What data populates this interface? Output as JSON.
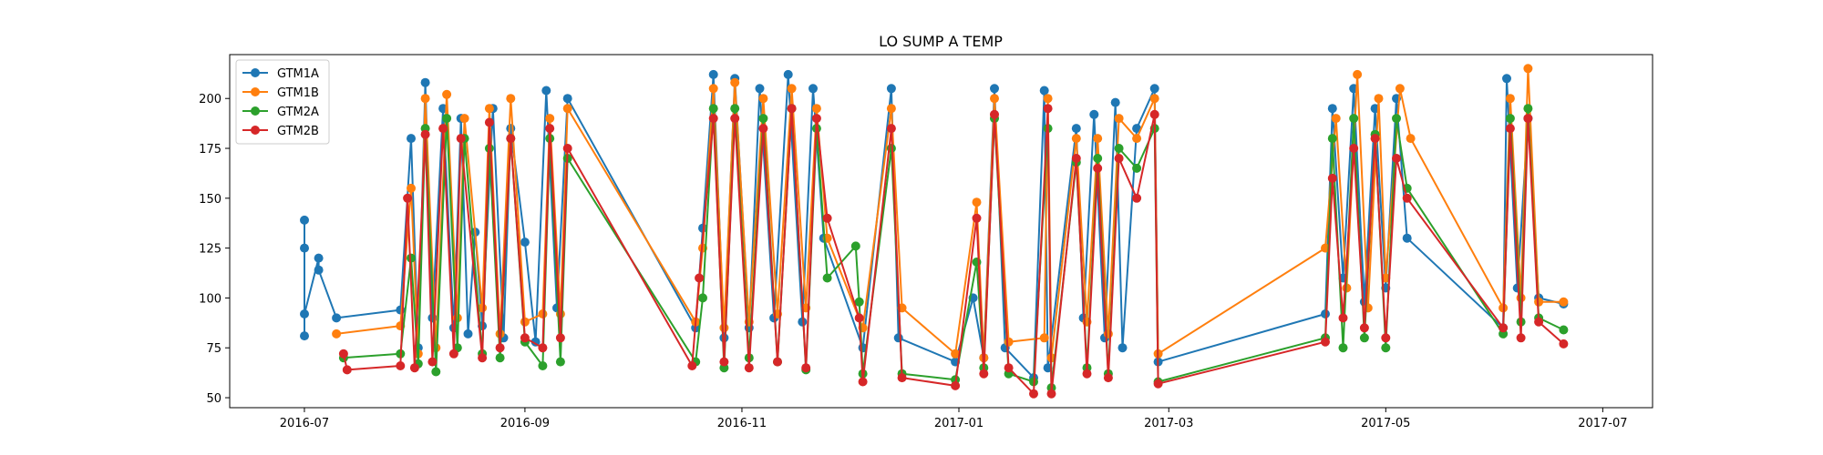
{
  "chart_data": {
    "type": "line",
    "title": "LO SUMP A TEMP",
    "xlabel": "",
    "ylabel": "",
    "x_axis": "date",
    "xlim": [
      "2016-06-10",
      "2017-07-15"
    ],
    "ylim": [
      45,
      222
    ],
    "x_ticks": [
      "2016-07-01",
      "2016-09-01",
      "2016-11-01",
      "2017-01-01",
      "2017-03-01",
      "2017-05-01",
      "2017-07-01"
    ],
    "x_tick_labels": [
      "2016-07",
      "2016-09",
      "2016-11",
      "2017-01",
      "2017-03",
      "2017-05",
      "2017-07"
    ],
    "y_ticks": [
      50,
      75,
      100,
      125,
      150,
      175,
      200
    ],
    "y_tick_labels": [
      "50",
      "75",
      "100",
      "125",
      "150",
      "175",
      "200"
    ],
    "grid": false,
    "legend_position": "top-left",
    "markers": true,
    "series": [
      {
        "name": "GTM1A",
        "color": "#1f77b4",
        "points": [
          [
            "2016-07-01",
            81
          ],
          [
            "2016-07-01",
            139
          ],
          [
            "2016-07-01",
            125
          ],
          [
            "2016-07-01",
            92
          ],
          [
            "2016-07-05",
            120
          ],
          [
            "2016-07-05",
            114
          ],
          [
            "2016-07-10",
            90
          ],
          [
            "2016-07-28",
            94
          ],
          [
            "2016-07-31",
            180
          ],
          [
            "2016-08-02",
            75
          ],
          [
            "2016-08-04",
            208
          ],
          [
            "2016-08-06",
            90
          ],
          [
            "2016-08-09",
            195
          ],
          [
            "2016-08-12",
            85
          ],
          [
            "2016-08-14",
            190
          ],
          [
            "2016-08-16",
            82
          ],
          [
            "2016-08-18",
            133
          ],
          [
            "2016-08-20",
            86
          ],
          [
            "2016-08-23",
            195
          ],
          [
            "2016-08-26",
            80
          ],
          [
            "2016-08-28",
            185
          ],
          [
            "2016-09-01",
            128
          ],
          [
            "2016-09-04",
            78
          ],
          [
            "2016-09-07",
            204
          ],
          [
            "2016-09-10",
            95
          ],
          [
            "2016-09-13",
            200
          ],
          [
            "2016-10-19",
            85
          ],
          [
            "2016-10-21",
            135
          ],
          [
            "2016-10-24",
            212
          ],
          [
            "2016-10-27",
            80
          ],
          [
            "2016-10-30",
            210
          ],
          [
            "2016-11-03",
            85
          ],
          [
            "2016-11-06",
            205
          ],
          [
            "2016-11-10",
            90
          ],
          [
            "2016-11-14",
            212
          ],
          [
            "2016-11-18",
            88
          ],
          [
            "2016-11-21",
            205
          ],
          [
            "2016-11-24",
            130
          ],
          [
            "2016-12-05",
            75
          ],
          [
            "2016-12-13",
            205
          ],
          [
            "2016-12-15",
            80
          ],
          [
            "2016-12-31",
            68
          ],
          [
            "2017-01-05",
            100
          ],
          [
            "2017-01-08",
            70
          ],
          [
            "2017-01-11",
            205
          ],
          [
            "2017-01-14",
            75
          ],
          [
            "2017-01-22",
            60
          ],
          [
            "2017-01-25",
            204
          ],
          [
            "2017-01-26",
            65
          ],
          [
            "2017-02-03",
            185
          ],
          [
            "2017-02-05",
            90
          ],
          [
            "2017-02-08",
            192
          ],
          [
            "2017-02-11",
            80
          ],
          [
            "2017-02-14",
            198
          ],
          [
            "2017-02-16",
            75
          ],
          [
            "2017-02-20",
            185
          ],
          [
            "2017-02-25",
            205
          ],
          [
            "2017-02-26",
            68
          ],
          [
            "2017-04-14",
            92
          ],
          [
            "2017-04-16",
            195
          ],
          [
            "2017-04-19",
            110
          ],
          [
            "2017-04-22",
            205
          ],
          [
            "2017-04-25",
            98
          ],
          [
            "2017-04-28",
            195
          ],
          [
            "2017-05-01",
            105
          ],
          [
            "2017-05-04",
            200
          ],
          [
            "2017-05-07",
            130
          ],
          [
            "2017-06-03",
            85
          ],
          [
            "2017-06-04",
            210
          ],
          [
            "2017-06-07",
            105
          ],
          [
            "2017-06-10",
            190
          ],
          [
            "2017-06-13",
            100
          ],
          [
            "2017-06-20",
            97
          ]
        ]
      },
      {
        "name": "GTM1B",
        "color": "#ff7f0e",
        "points": [
          [
            "2016-07-10",
            82
          ],
          [
            "2016-07-28",
            86
          ],
          [
            "2016-07-31",
            155
          ],
          [
            "2016-08-02",
            72
          ],
          [
            "2016-08-04",
            200
          ],
          [
            "2016-08-07",
            75
          ],
          [
            "2016-08-10",
            202
          ],
          [
            "2016-08-13",
            90
          ],
          [
            "2016-08-15",
            190
          ],
          [
            "2016-08-20",
            95
          ],
          [
            "2016-08-22",
            195
          ],
          [
            "2016-08-25",
            82
          ],
          [
            "2016-08-28",
            200
          ],
          [
            "2016-09-01",
            88
          ],
          [
            "2016-09-06",
            92
          ],
          [
            "2016-09-08",
            190
          ],
          [
            "2016-09-11",
            92
          ],
          [
            "2016-09-13",
            195
          ],
          [
            "2016-10-19",
            88
          ],
          [
            "2016-10-21",
            125
          ],
          [
            "2016-10-24",
            205
          ],
          [
            "2016-10-27",
            85
          ],
          [
            "2016-10-30",
            208
          ],
          [
            "2016-11-03",
            88
          ],
          [
            "2016-11-07",
            200
          ],
          [
            "2016-11-11",
            92
          ],
          [
            "2016-11-15",
            205
          ],
          [
            "2016-11-19",
            95
          ],
          [
            "2016-11-22",
            195
          ],
          [
            "2016-11-25",
            130
          ],
          [
            "2016-12-05",
            85
          ],
          [
            "2016-12-13",
            195
          ],
          [
            "2016-12-16",
            95
          ],
          [
            "2016-12-31",
            72
          ],
          [
            "2017-01-06",
            148
          ],
          [
            "2017-01-08",
            70
          ],
          [
            "2017-01-11",
            200
          ],
          [
            "2017-01-15",
            78
          ],
          [
            "2017-01-25",
            80
          ],
          [
            "2017-01-26",
            200
          ],
          [
            "2017-01-27",
            70
          ],
          [
            "2017-02-03",
            180
          ],
          [
            "2017-02-06",
            88
          ],
          [
            "2017-02-09",
            180
          ],
          [
            "2017-02-12",
            82
          ],
          [
            "2017-02-15",
            190
          ],
          [
            "2017-02-20",
            180
          ],
          [
            "2017-02-25",
            200
          ],
          [
            "2017-02-26",
            72
          ],
          [
            "2017-04-14",
            125
          ],
          [
            "2017-04-17",
            190
          ],
          [
            "2017-04-20",
            105
          ],
          [
            "2017-04-23",
            212
          ],
          [
            "2017-04-26",
            95
          ],
          [
            "2017-04-29",
            200
          ],
          [
            "2017-05-01",
            110
          ],
          [
            "2017-05-05",
            205
          ],
          [
            "2017-05-08",
            180
          ],
          [
            "2017-06-03",
            95
          ],
          [
            "2017-06-05",
            200
          ],
          [
            "2017-06-08",
            100
          ],
          [
            "2017-06-10",
            215
          ],
          [
            "2017-06-13",
            98
          ],
          [
            "2017-06-20",
            98
          ]
        ]
      },
      {
        "name": "GTM2A",
        "color": "#2ca02c",
        "points": [
          [
            "2016-07-12",
            70
          ],
          [
            "2016-07-28",
            72
          ],
          [
            "2016-07-31",
            120
          ],
          [
            "2016-08-02",
            67
          ],
          [
            "2016-08-04",
            185
          ],
          [
            "2016-08-07",
            63
          ],
          [
            "2016-08-10",
            190
          ],
          [
            "2016-08-13",
            75
          ],
          [
            "2016-08-15",
            180
          ],
          [
            "2016-08-20",
            72
          ],
          [
            "2016-08-22",
            175
          ],
          [
            "2016-08-25",
            70
          ],
          [
            "2016-08-28",
            180
          ],
          [
            "2016-09-01",
            78
          ],
          [
            "2016-09-06",
            66
          ],
          [
            "2016-09-08",
            180
          ],
          [
            "2016-09-11",
            68
          ],
          [
            "2016-09-13",
            170
          ],
          [
            "2016-10-19",
            68
          ],
          [
            "2016-10-21",
            100
          ],
          [
            "2016-10-24",
            195
          ],
          [
            "2016-10-27",
            65
          ],
          [
            "2016-10-30",
            195
          ],
          [
            "2016-11-03",
            70
          ],
          [
            "2016-11-07",
            190
          ],
          [
            "2016-11-11",
            68
          ],
          [
            "2016-11-15",
            195
          ],
          [
            "2016-11-19",
            64
          ],
          [
            "2016-11-22",
            185
          ],
          [
            "2016-11-25",
            110
          ],
          [
            "2016-12-03",
            126
          ],
          [
            "2016-12-04",
            98
          ],
          [
            "2016-12-05",
            62
          ],
          [
            "2016-12-13",
            175
          ],
          [
            "2016-12-16",
            62
          ],
          [
            "2016-12-31",
            59
          ],
          [
            "2017-01-06",
            118
          ],
          [
            "2017-01-08",
            65
          ],
          [
            "2017-01-11",
            190
          ],
          [
            "2017-01-15",
            62
          ],
          [
            "2017-01-22",
            58
          ],
          [
            "2017-01-26",
            185
          ],
          [
            "2017-01-27",
            55
          ],
          [
            "2017-02-03",
            168
          ],
          [
            "2017-02-06",
            65
          ],
          [
            "2017-02-09",
            170
          ],
          [
            "2017-02-12",
            62
          ],
          [
            "2017-02-15",
            175
          ],
          [
            "2017-02-20",
            165
          ],
          [
            "2017-02-25",
            185
          ],
          [
            "2017-02-26",
            58
          ],
          [
            "2017-04-14",
            80
          ],
          [
            "2017-04-16",
            180
          ],
          [
            "2017-04-19",
            75
          ],
          [
            "2017-04-22",
            190
          ],
          [
            "2017-04-25",
            80
          ],
          [
            "2017-04-28",
            182
          ],
          [
            "2017-05-01",
            75
          ],
          [
            "2017-05-04",
            190
          ],
          [
            "2017-05-07",
            155
          ],
          [
            "2017-06-03",
            82
          ],
          [
            "2017-06-05",
            190
          ],
          [
            "2017-06-08",
            88
          ],
          [
            "2017-06-10",
            195
          ],
          [
            "2017-06-13",
            90
          ],
          [
            "2017-06-20",
            84
          ]
        ]
      },
      {
        "name": "GTM2B",
        "color": "#d62728",
        "points": [
          [
            "2016-07-12",
            72
          ],
          [
            "2016-07-13",
            64
          ],
          [
            "2016-07-28",
            66
          ],
          [
            "2016-07-30",
            150
          ],
          [
            "2016-08-01",
            65
          ],
          [
            "2016-08-04",
            182
          ],
          [
            "2016-08-06",
            68
          ],
          [
            "2016-08-09",
            185
          ],
          [
            "2016-08-12",
            72
          ],
          [
            "2016-08-14",
            180
          ],
          [
            "2016-08-20",
            70
          ],
          [
            "2016-08-22",
            188
          ],
          [
            "2016-08-25",
            75
          ],
          [
            "2016-08-28",
            180
          ],
          [
            "2016-09-01",
            80
          ],
          [
            "2016-09-06",
            75
          ],
          [
            "2016-09-08",
            185
          ],
          [
            "2016-09-11",
            80
          ],
          [
            "2016-09-13",
            175
          ],
          [
            "2016-10-18",
            66
          ],
          [
            "2016-10-20",
            110
          ],
          [
            "2016-10-24",
            190
          ],
          [
            "2016-10-27",
            68
          ],
          [
            "2016-10-30",
            190
          ],
          [
            "2016-11-03",
            65
          ],
          [
            "2016-11-07",
            185
          ],
          [
            "2016-11-11",
            68
          ],
          [
            "2016-11-15",
            195
          ],
          [
            "2016-11-19",
            65
          ],
          [
            "2016-11-22",
            190
          ],
          [
            "2016-11-25",
            140
          ],
          [
            "2016-12-04",
            90
          ],
          [
            "2016-12-05",
            58
          ],
          [
            "2016-12-13",
            185
          ],
          [
            "2016-12-16",
            60
          ],
          [
            "2016-12-31",
            56
          ],
          [
            "2017-01-06",
            140
          ],
          [
            "2017-01-08",
            62
          ],
          [
            "2017-01-11",
            192
          ],
          [
            "2017-01-15",
            65
          ],
          [
            "2017-01-22",
            52
          ],
          [
            "2017-01-26",
            195
          ],
          [
            "2017-01-27",
            52
          ],
          [
            "2017-02-03",
            170
          ],
          [
            "2017-02-06",
            62
          ],
          [
            "2017-02-09",
            165
          ],
          [
            "2017-02-12",
            60
          ],
          [
            "2017-02-15",
            170
          ],
          [
            "2017-02-20",
            150
          ],
          [
            "2017-02-25",
            192
          ],
          [
            "2017-02-26",
            57
          ],
          [
            "2017-04-14",
            78
          ],
          [
            "2017-04-16",
            160
          ],
          [
            "2017-04-19",
            90
          ],
          [
            "2017-04-22",
            175
          ],
          [
            "2017-04-25",
            85
          ],
          [
            "2017-04-28",
            180
          ],
          [
            "2017-05-01",
            80
          ],
          [
            "2017-05-04",
            170
          ],
          [
            "2017-05-07",
            150
          ],
          [
            "2017-06-03",
            85
          ],
          [
            "2017-06-05",
            185
          ],
          [
            "2017-06-08",
            80
          ],
          [
            "2017-06-10",
            190
          ],
          [
            "2017-06-13",
            88
          ],
          [
            "2017-06-20",
            77
          ]
        ]
      }
    ]
  }
}
